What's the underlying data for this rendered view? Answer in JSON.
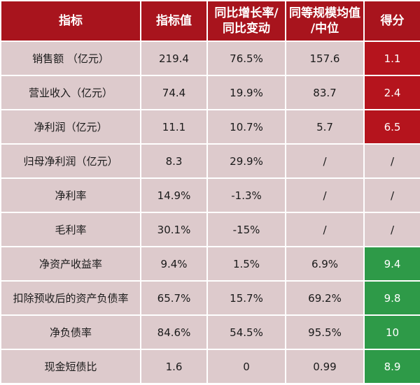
{
  "chart_data": {
    "type": "table",
    "columns": [
      "指标",
      "指标值",
      "同比增长率/\n同比变动",
      "同等规模均值\n/中位",
      "得分"
    ],
    "rows": [
      [
        "销售额 （亿元）",
        "219.4",
        "76.5%",
        "157.6",
        "1.1"
      ],
      [
        "营业收入（亿元）",
        "74.4",
        "19.9%",
        "83.7",
        "2.4"
      ],
      [
        "净利润（亿元）",
        "11.1",
        "10.7%",
        "5.7",
        "6.5"
      ],
      [
        "归母净利润（亿元）",
        "8.3",
        "29.9%",
        "/",
        "/"
      ],
      [
        "净利率",
        "14.9%",
        "-1.3%",
        "/",
        "/"
      ],
      [
        "毛利率",
        "30.1%",
        "-15%",
        "/",
        "/"
      ],
      [
        "净资产收益率",
        "9.4%",
        "1.5%",
        "6.9%",
        "9.4"
      ],
      [
        "扣除预收后的资产负债率",
        "65.7%",
        "15.7%",
        "69.2%",
        "9.8"
      ],
      [
        "净负债率",
        "84.6%",
        "54.5%",
        "95.5%",
        "10"
      ],
      [
        "现金短债比",
        "1.6",
        "0",
        "0.99",
        "8.9"
      ]
    ],
    "score_colors": [
      "red",
      "red",
      "red",
      "neutral",
      "neutral",
      "neutral",
      "green",
      "green",
      "green",
      "green"
    ]
  },
  "colors": {
    "header_bg": "#a8141d",
    "cell_bg": "#ddcacc",
    "score_red": "#b5141d",
    "score_green": "#2e9a48"
  }
}
